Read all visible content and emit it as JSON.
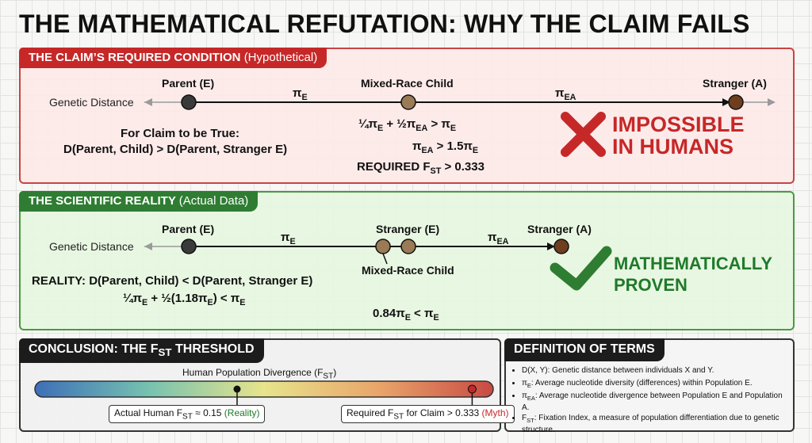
{
  "title": "THE MATHEMATICAL REFUTATION: WHY THE CLAIM FAILS",
  "claim": {
    "tab_title": "THE CLAIM’S REQUIRED CONDITION",
    "tab_sub": "(Hypothetical)",
    "axis_label": "Genetic Distance",
    "nodes": [
      "Parent (E)",
      "Mixed-Race Child",
      "Stranger (A)"
    ],
    "segment_labels": [
      {
        "base": "π",
        "sub": "E"
      },
      {
        "base": "π",
        "sub": "EA"
      }
    ],
    "condition_line1": "For Claim to be True:",
    "condition_line2": "D(Parent, Child) > D(Parent, Stranger E)",
    "equations": [
      {
        "a": "¼π",
        "as": "E",
        "b": " + ½π",
        "bs": "EA",
        "c": " > π",
        "cs": "E"
      },
      {
        "a": "π",
        "as": "EA",
        "b": " > 1.5π",
        "bs": "E"
      },
      {
        "a": "REQUIRED F",
        "as": "ST",
        "b": " > 0.333"
      }
    ],
    "verdict_line1": "IMPOSSIBLE",
    "verdict_line2": "IN HUMANS",
    "verdict_color": "#c62828"
  },
  "reality": {
    "tab_title": "THE SCIENTIFIC REALITY",
    "tab_sub": "(Actual Data)",
    "axis_label": "Genetic Distance",
    "nodes": [
      "Parent (E)",
      "Stranger (E)",
      "Stranger (A)",
      "Mixed-Race Child"
    ],
    "segment_labels": [
      {
        "base": "π",
        "sub": "E"
      },
      {
        "base": "π",
        "sub": "EA"
      }
    ],
    "statement": "REALITY: D(Parent, Child) < D(Parent, Stranger E)",
    "eq1": {
      "a": "¼π",
      "as": "E",
      "b": " + ½(1.18π",
      "bs": "E",
      "c": ") < π",
      "cs": "E"
    },
    "eq2": {
      "a": "0.84π",
      "as": "E",
      "b": " < π",
      "bs": "E"
    },
    "verdict_line1": "MATHEMATICALLY",
    "verdict_line2": "PROVEN",
    "verdict_color": "#1f7a2a"
  },
  "conclusion": {
    "tab_base": "CONCLUSION: THE F",
    "tab_sub": "ST",
    "tab_end": " THRESHOLD",
    "bar_label_base": "Human Population Divergence (F",
    "bar_label_sub": "ST",
    "bar_label_end": ")",
    "actual": {
      "value": 0.15,
      "pre": "Actual Human F",
      "sub": "ST",
      "mid": " ≈ 0.15 ",
      "tag": "(Reality)",
      "tag_color": "#1f7a2a"
    },
    "required": {
      "value": 0.333,
      "pre": "Required F",
      "sub": "ST",
      "mid": " for Claim > 0.333 ",
      "tag": "(Myth)",
      "tag_color": "#c62828"
    }
  },
  "definitions": {
    "tab_title": "DEFINITION OF TERMS",
    "items": [
      {
        "term": "D(X, Y)",
        "term_sub": "",
        "text": ": Genetic distance between individuals X and Y."
      },
      {
        "term": "π",
        "term_sub": "E",
        "text": ": Average nucleotide diversity (differences) within Population E."
      },
      {
        "term": "π",
        "term_sub": "EA",
        "text": ": Average nucleotide divergence between Population E and Population A."
      },
      {
        "term": "F",
        "term_sub": "ST",
        "text": ": Fixation Index, a measure of population differentiation due to genetic structure."
      }
    ]
  }
}
